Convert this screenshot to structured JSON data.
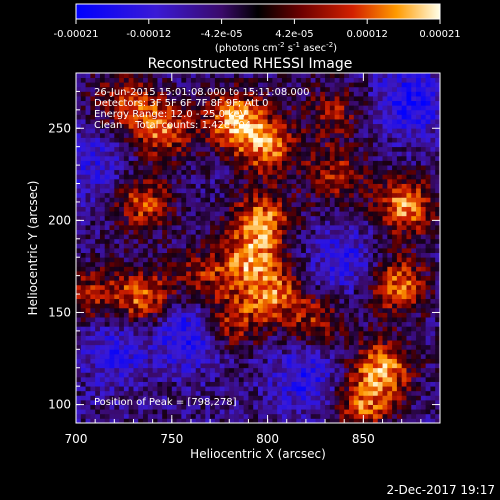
{
  "chart_data": {
    "type": "heatmap",
    "title": "Reconstructed RHESSI Image",
    "xlabel": "Heliocentric X (arcsec)",
    "ylabel": "Heliocentric Y (arcsec)",
    "xlim": [
      700,
      890
    ],
    "ylim": [
      90,
      280
    ],
    "x_ticks": [
      700,
      750,
      800,
      850
    ],
    "y_ticks": [
      100,
      150,
      200,
      250
    ],
    "colorbar": {
      "range": [
        -0.00021,
        0.00021
      ],
      "ticks": [
        "-0.00021",
        "-0.00012",
        "-4.2e-05",
        "4.2e-05",
        "0.00012",
        "0.00021"
      ],
      "units_main": "(photons cm",
      "units_sup1": "-2",
      "units_mid": " s",
      "units_sup2": "-1",
      "units_end": " asec",
      "units_sup3": "-2",
      "units_close": ")"
    },
    "annotations": [
      "26-Jun-2015 15:01:08.000 to 15:11:08.000",
      "Detectors: 3F 5F 6F 7F 8F 9F; Att 0",
      "Energy Range: 12.0 - 25.0 keV",
      "Clean    Total counts: 1.42e+04"
    ],
    "peak_label": "Position of Peak = [798,278]",
    "peak": [
      798,
      278
    ],
    "sources": [
      {
        "x": 783,
        "y": 255,
        "amp": 1.0
      },
      {
        "x": 800,
        "y": 240,
        "amp": 0.85
      },
      {
        "x": 797,
        "y": 200,
        "amp": 0.9
      },
      {
        "x": 790,
        "y": 178,
        "amp": 0.8
      },
      {
        "x": 803,
        "y": 160,
        "amp": 0.75
      },
      {
        "x": 780,
        "y": 145,
        "amp": 0.7
      },
      {
        "x": 872,
        "y": 208,
        "amp": 0.95
      },
      {
        "x": 868,
        "y": 165,
        "amp": 0.85
      },
      {
        "x": 860,
        "y": 120,
        "amp": 0.9
      },
      {
        "x": 850,
        "y": 100,
        "amp": 0.75
      },
      {
        "x": 735,
        "y": 210,
        "amp": 0.7
      },
      {
        "x": 745,
        "y": 250,
        "amp": 0.85
      },
      {
        "x": 725,
        "y": 265,
        "amp": 0.6
      },
      {
        "x": 735,
        "y": 158,
        "amp": 0.8
      },
      {
        "x": 708,
        "y": 160,
        "amp": 0.55
      },
      {
        "x": 765,
        "y": 170,
        "amp": 0.5
      },
      {
        "x": 835,
        "y": 225,
        "amp": 0.6
      },
      {
        "x": 835,
        "y": 260,
        "amp": 0.5
      },
      {
        "x": 825,
        "y": 145,
        "amp": 0.55
      }
    ],
    "minima": [
      {
        "x": 760,
        "y": 140,
        "amp": 0.9
      },
      {
        "x": 875,
        "y": 265,
        "amp": 0.8
      },
      {
        "x": 720,
        "y": 130,
        "amp": 0.6
      },
      {
        "x": 820,
        "y": 115,
        "amp": 0.7
      },
      {
        "x": 840,
        "y": 178,
        "amp": 0.6
      },
      {
        "x": 710,
        "y": 230,
        "amp": 0.5
      }
    ]
  },
  "footer": {
    "date": "2-Dec-2017 19:17"
  }
}
